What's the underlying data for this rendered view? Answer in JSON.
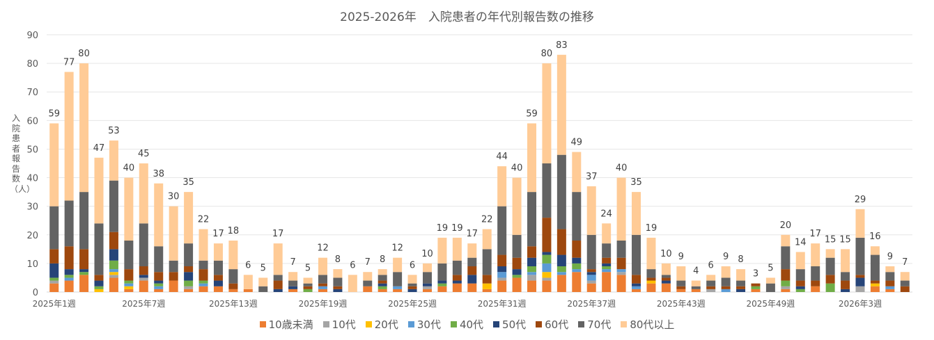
{
  "chart_data": {
    "type": "bar",
    "stacked": true,
    "title": "2025-2026年　入院患者の年代別報告数の推移",
    "ylabel": "入院患者報告数（人）",
    "xlabel": "",
    "ylim": [
      0,
      90
    ],
    "yticks": [
      0,
      10,
      20,
      30,
      40,
      50,
      60,
      70,
      80,
      90
    ],
    "grid": true,
    "legend_position": "bottom",
    "x_tick_labels": [
      {
        "index": 0,
        "label": "2025年1週"
      },
      {
        "index": 6,
        "label": "2025年7週"
      },
      {
        "index": 12,
        "label": "2025年13週"
      },
      {
        "index": 18,
        "label": "2025年19週"
      },
      {
        "index": 24,
        "label": "2025年25週"
      },
      {
        "index": 30,
        "label": "2025年31週"
      },
      {
        "index": 36,
        "label": "2025年37週"
      },
      {
        "index": 42,
        "label": "2025年43週"
      },
      {
        "index": 48,
        "label": "2025年49週"
      },
      {
        "index": 54,
        "label": "2026年3週"
      }
    ],
    "series": [
      {
        "name": "10歳未満",
        "color": "#ED7D31"
      },
      {
        "name": "10代",
        "color": "#A5A5A5"
      },
      {
        "name": "20代",
        "color": "#FFC000"
      },
      {
        "name": "30代",
        "color": "#5B9BD5"
      },
      {
        "name": "40代",
        "color": "#70AD47"
      },
      {
        "name": "50代",
        "color": "#264478"
      },
      {
        "name": "60代",
        "color": "#9E480E"
      },
      {
        "name": "70代",
        "color": "#636363"
      },
      {
        "name": "80代以上",
        "color": "#FFCB96"
      }
    ],
    "totals": [
      59,
      77,
      80,
      47,
      53,
      40,
      45,
      38,
      30,
      35,
      22,
      17,
      18,
      6,
      5,
      17,
      7,
      5,
      12,
      8,
      6,
      7,
      8,
      12,
      6,
      10,
      19,
      19,
      17,
      22,
      44,
      40,
      59,
      80,
      83,
      49,
      37,
      24,
      40,
      35,
      19,
      10,
      9,
      4,
      6,
      9,
      8,
      3,
      5,
      20,
      14,
      17,
      15,
      15,
      29,
      16,
      9,
      7
    ],
    "values_by_week": [
      [
        3,
        1,
        0,
        0,
        1,
        5,
        5,
        15,
        29
      ],
      [
        4,
        0,
        0,
        1,
        1,
        2,
        8,
        16,
        45
      ],
      [
        6,
        0,
        0,
        0,
        1,
        1,
        7,
        20,
        45
      ],
      [
        0,
        0,
        1,
        0,
        1,
        2,
        2,
        18,
        23
      ],
      [
        5,
        1,
        1,
        1,
        3,
        4,
        6,
        18,
        14
      ],
      [
        1,
        0,
        1,
        1,
        1,
        0,
        4,
        10,
        22
      ],
      [
        4,
        1,
        0,
        0,
        0,
        1,
        3,
        15,
        21
      ],
      [
        1,
        0,
        0,
        1,
        1,
        1,
        3,
        9,
        22
      ],
      [
        4,
        0,
        0,
        0,
        0,
        0,
        3,
        4,
        19
      ],
      [
        1,
        1,
        0,
        0,
        2,
        3,
        2,
        8,
        18
      ],
      [
        2,
        0,
        0,
        1,
        1,
        0,
        4,
        3,
        11
      ],
      [
        2,
        0,
        0,
        0,
        0,
        2,
        2,
        5,
        6
      ],
      [
        1,
        0,
        0,
        0,
        0,
        0,
        2,
        5,
        10
      ],
      [
        1,
        0,
        0,
        0,
        0,
        0,
        0,
        0,
        5
      ],
      [
        0,
        0,
        0,
        0,
        0,
        0,
        0,
        2,
        3
      ],
      [
        0,
        0,
        0,
        0,
        0,
        1,
        3,
        2,
        11
      ],
      [
        1,
        0,
        0,
        0,
        0,
        1,
        0,
        2,
        3
      ],
      [
        0,
        0,
        0,
        0,
        1,
        0,
        1,
        1,
        2
      ],
      [
        1,
        0,
        0,
        1,
        0,
        0,
        1,
        3,
        6
      ],
      [
        0,
        0,
        0,
        0,
        0,
        1,
        1,
        3,
        3
      ],
      [
        0,
        0,
        0,
        0,
        0,
        0,
        0,
        0,
        6
      ],
      [
        2,
        0,
        0,
        0,
        0,
        0,
        0,
        2,
        3
      ],
      [
        1,
        0,
        0,
        0,
        1,
        1,
        1,
        2,
        2
      ],
      [
        1,
        0,
        0,
        1,
        0,
        0,
        0,
        5,
        5
      ],
      [
        0,
        0,
        0,
        0,
        0,
        1,
        1,
        1,
        3
      ],
      [
        1,
        1,
        0,
        0,
        0,
        1,
        0,
        4,
        3
      ],
      [
        2,
        0,
        0,
        0,
        1,
        1,
        0,
        6,
        9
      ],
      [
        3,
        0,
        0,
        0,
        0,
        1,
        2,
        5,
        8
      ],
      [
        3,
        0,
        0,
        0,
        0,
        3,
        3,
        3,
        5
      ],
      [
        1,
        0,
        2,
        0,
        0,
        0,
        3,
        9,
        7
      ],
      [
        4,
        1,
        0,
        2,
        0,
        2,
        4,
        17,
        14
      ],
      [
        5,
        0,
        0,
        0,
        1,
        2,
        4,
        8,
        20
      ],
      [
        4,
        2,
        0,
        1,
        2,
        3,
        4,
        19,
        24
      ],
      [
        4,
        1,
        2,
        3,
        3,
        1,
        12,
        19,
        35
      ],
      [
        6,
        0,
        0,
        1,
        2,
        4,
        9,
        26,
        35
      ],
      [
        7,
        0,
        0,
        1,
        2,
        2,
        6,
        17,
        14
      ],
      [
        3,
        1,
        0,
        2,
        0,
        1,
        1,
        12,
        17
      ],
      [
        7,
        0,
        0,
        1,
        1,
        1,
        2,
        5,
        7
      ],
      [
        6,
        1,
        0,
        1,
        0,
        0,
        4,
        6,
        22
      ],
      [
        1,
        0,
        0,
        1,
        0,
        1,
        3,
        14,
        15
      ],
      [
        3,
        0,
        1,
        0,
        0,
        0,
        1,
        3,
        11
      ],
      [
        3,
        0,
        0,
        0,
        0,
        1,
        1,
        1,
        4
      ],
      [
        1,
        0,
        0,
        0,
        0,
        0,
        1,
        2,
        5
      ],
      [
        1,
        0,
        0,
        0,
        0,
        0,
        0,
        1,
        2
      ],
      [
        0,
        1,
        0,
        0,
        0,
        0,
        1,
        2,
        2
      ],
      [
        0,
        0,
        0,
        1,
        0,
        0,
        1,
        3,
        4
      ],
      [
        0,
        0,
        0,
        0,
        0,
        1,
        1,
        2,
        4
      ],
      [
        1,
        0,
        0,
        0,
        1,
        0,
        1,
        0,
        0
      ],
      [
        0,
        0,
        0,
        0,
        0,
        0,
        0,
        3,
        2
      ],
      [
        1,
        1,
        0,
        0,
        2,
        0,
        4,
        8,
        4
      ],
      [
        0,
        0,
        0,
        0,
        1,
        1,
        2,
        4,
        6
      ],
      [
        2,
        0,
        0,
        0,
        0,
        0,
        2,
        5,
        8
      ],
      [
        0,
        0,
        0,
        0,
        3,
        0,
        3,
        6,
        3
      ],
      [
        0,
        0,
        0,
        0,
        0,
        1,
        3,
        3,
        8
      ],
      [
        0,
        2,
        0,
        0,
        0,
        3,
        1,
        13,
        10
      ],
      [
        2,
        0,
        1,
        0,
        0,
        0,
        1,
        9,
        3
      ],
      [
        1,
        0,
        0,
        1,
        0,
        0,
        2,
        3,
        2
      ],
      [
        0,
        0,
        0,
        0,
        0,
        0,
        2,
        2,
        3
      ]
    ]
  }
}
